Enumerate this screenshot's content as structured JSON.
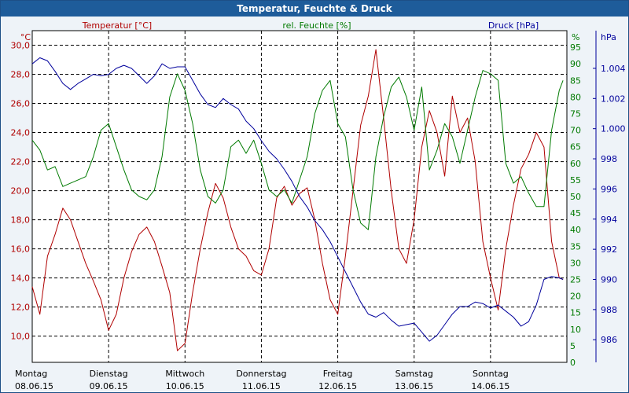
{
  "title": "Temperatur, Feuchte & Druck",
  "chart_data": {
    "type": "line",
    "x_days": [
      {
        "name": "Montag",
        "date": "08.06.15"
      },
      {
        "name": "Dienstag",
        "date": "09.06.15"
      },
      {
        "name": "Mittwoch",
        "date": "10.06.15"
      },
      {
        "name": "Donnerstag",
        "date": "11.06.15"
      },
      {
        "name": "Freitag",
        "date": "12.06.15"
      },
      {
        "name": "Samstag",
        "date": "13.06.15"
      },
      {
        "name": "Sonntag",
        "date": "14.06.15"
      }
    ],
    "xlim": [
      0,
      7.0
    ],
    "axes": {
      "temp": {
        "label": "Temperatur [°C]",
        "unit": "°C",
        "ylim": [
          8.2,
          31.0
        ],
        "ticks": [
          "10,0",
          "12,0",
          "14,0",
          "16,0",
          "18,0",
          "20,0",
          "22,0",
          "24,0",
          "26,0",
          "28,0",
          "30,0"
        ],
        "color": "#b00000"
      },
      "hum": {
        "label": "rel. Feuchte [%]",
        "unit": "%",
        "ylim": [
          0,
          100
        ],
        "ticks": [
          "0",
          "5",
          "10",
          "15",
          "20",
          "25",
          "30",
          "35",
          "40",
          "45",
          "50",
          "55",
          "60",
          "65",
          "70",
          "75",
          "80",
          "85",
          "90",
          "95"
        ],
        "color": "#007a00"
      },
      "press": {
        "label": "Druck [hPa]",
        "unit": "hPa",
        "ylim": [
          984.5,
          1006.5
        ],
        "ticks": [
          "986",
          "988",
          "990",
          "992",
          "994",
          "996",
          "998",
          "1.000",
          "1.002",
          "1.004"
        ],
        "color": "#00009c"
      }
    },
    "series": [
      {
        "name": "Temperatur",
        "axis": "temp",
        "color": "#b00000",
        "x": [
          0,
          0.1,
          0.2,
          0.3,
          0.4,
          0.5,
          0.6,
          0.7,
          0.8,
          0.9,
          1.0,
          1.1,
          1.2,
          1.3,
          1.4,
          1.5,
          1.6,
          1.7,
          1.8,
          1.9,
          2.0,
          2.1,
          2.2,
          2.3,
          2.4,
          2.5,
          2.6,
          2.7,
          2.8,
          2.9,
          3.0,
          3.1,
          3.2,
          3.3,
          3.4,
          3.5,
          3.6,
          3.7,
          3.8,
          3.9,
          4.0,
          4.1,
          4.2,
          4.3,
          4.4,
          4.5,
          4.6,
          4.7,
          4.8,
          4.9,
          5.0,
          5.1,
          5.2,
          5.3,
          5.4,
          5.5,
          5.6,
          5.7,
          5.8,
          5.9,
          6.0,
          6.1,
          6.2,
          6.3,
          6.4,
          6.5,
          6.6,
          6.7,
          6.8,
          6.9,
          6.95
        ],
        "values": [
          13.4,
          11.5,
          15.5,
          17.0,
          18.8,
          18.0,
          16.5,
          15.0,
          13.8,
          12.5,
          10.4,
          11.5,
          14.0,
          15.8,
          17.0,
          17.5,
          16.5,
          14.8,
          13.0,
          9.0,
          9.5,
          13.0,
          16.0,
          18.5,
          20.5,
          19.5,
          17.5,
          16.0,
          15.5,
          14.5,
          14.2,
          16.0,
          19.5,
          20.3,
          19.0,
          19.8,
          20.2,
          18.0,
          15.0,
          12.5,
          11.5,
          15.5,
          20.0,
          24.5,
          26.5,
          29.7,
          25.0,
          20.0,
          16.0,
          15.0,
          18.0,
          23.0,
          25.5,
          24.0,
          21.0,
          26.5,
          24.0,
          25.0,
          22.0,
          16.5,
          14.0,
          11.8,
          16.0,
          19.0,
          21.5,
          22.5,
          24.0,
          23.0,
          16.5,
          14.0,
          13.9
        ]
      },
      {
        "name": "rel. Feuchte",
        "axis": "hum",
        "color": "#007a00",
        "x": [
          0,
          0.1,
          0.2,
          0.3,
          0.4,
          0.5,
          0.6,
          0.7,
          0.8,
          0.9,
          1.0,
          1.1,
          1.2,
          1.3,
          1.4,
          1.5,
          1.6,
          1.7,
          1.8,
          1.9,
          2.0,
          2.1,
          2.2,
          2.3,
          2.4,
          2.5,
          2.6,
          2.7,
          2.8,
          2.9,
          3.0,
          3.1,
          3.2,
          3.3,
          3.4,
          3.5,
          3.6,
          3.7,
          3.8,
          3.9,
          4.0,
          4.1,
          4.2,
          4.3,
          4.4,
          4.5,
          4.6,
          4.7,
          4.8,
          4.9,
          5.0,
          5.1,
          5.2,
          5.3,
          5.4,
          5.5,
          5.6,
          5.7,
          5.8,
          5.9,
          6.0,
          6.1,
          6.2,
          6.3,
          6.4,
          6.5,
          6.6,
          6.7,
          6.8,
          6.9,
          6.95
        ],
        "values": [
          67,
          64,
          58,
          59,
          53,
          54,
          55,
          56,
          62,
          70,
          72,
          65,
          58,
          52,
          50,
          49,
          52,
          62,
          80,
          87,
          82,
          72,
          58,
          50,
          48,
          52,
          65,
          67,
          63,
          67,
          60,
          52,
          50,
          52,
          48,
          55,
          62,
          75,
          82,
          85,
          72,
          68,
          52,
          42,
          40,
          62,
          74,
          83,
          86,
          80,
          70,
          83,
          58,
          64,
          72,
          68,
          60,
          70,
          80,
          88,
          87,
          85,
          60,
          54,
          56,
          51,
          47,
          47,
          70,
          82,
          85
        ]
      },
      {
        "name": "Druck",
        "axis": "press",
        "color": "#00009c",
        "x": [
          0,
          0.1,
          0.2,
          0.3,
          0.4,
          0.5,
          0.6,
          0.7,
          0.8,
          0.9,
          1.0,
          1.1,
          1.2,
          1.3,
          1.4,
          1.5,
          1.6,
          1.7,
          1.8,
          1.9,
          2.0,
          2.1,
          2.2,
          2.3,
          2.4,
          2.5,
          2.6,
          2.7,
          2.8,
          2.9,
          3.0,
          3.1,
          3.2,
          3.3,
          3.4,
          3.5,
          3.6,
          3.7,
          3.8,
          3.9,
          4.0,
          4.1,
          4.2,
          4.3,
          4.4,
          4.5,
          4.6,
          4.7,
          4.8,
          4.9,
          5.0,
          5.1,
          5.2,
          5.3,
          5.4,
          5.5,
          5.6,
          5.7,
          5.8,
          5.9,
          6.0,
          6.1,
          6.2,
          6.3,
          6.4,
          6.5,
          6.6,
          6.7,
          6.8,
          6.9,
          6.95
        ],
        "values": [
          1004.3,
          1004.7,
          1004.5,
          1003.8,
          1003.0,
          1002.6,
          1003.0,
          1003.3,
          1003.6,
          1003.5,
          1003.6,
          1004.0,
          1004.2,
          1004.0,
          1003.5,
          1003.0,
          1003.5,
          1004.3,
          1004.0,
          1004.1,
          1004.1,
          1003.2,
          1002.3,
          1001.6,
          1001.4,
          1002.0,
          1001.6,
          1001.3,
          1000.5,
          1000.0,
          999.2,
          998.5,
          998.0,
          997.3,
          996.5,
          995.5,
          994.8,
          993.9,
          993.3,
          992.5,
          991.5,
          990.5,
          989.5,
          988.5,
          987.7,
          987.5,
          987.8,
          987.3,
          986.9,
          987.0,
          987.1,
          986.5,
          985.9,
          986.3,
          987.0,
          987.7,
          988.2,
          988.2,
          988.5,
          988.4,
          988.1,
          988.3,
          987.9,
          987.5,
          986.9,
          987.2,
          988.3,
          990.0,
          990.2,
          990.1,
          990.0
        ]
      }
    ]
  }
}
